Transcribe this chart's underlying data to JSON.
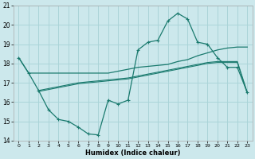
{
  "xlabel": "Humidex (Indice chaleur)",
  "background_color": "#cce8ec",
  "grid_color": "#aad4d8",
  "line_color": "#1a7a6e",
  "xlim": [
    -0.5,
    23.5
  ],
  "ylim": [
    14,
    21
  ],
  "yticks": [
    14,
    15,
    16,
    17,
    18,
    19,
    20,
    21
  ],
  "xticks": [
    0,
    1,
    2,
    3,
    4,
    5,
    6,
    7,
    8,
    9,
    10,
    11,
    12,
    13,
    14,
    15,
    16,
    17,
    18,
    19,
    20,
    21,
    22,
    23
  ],
  "curve_x": [
    0,
    1,
    2,
    3,
    4,
    5,
    6,
    7,
    8,
    9,
    10,
    11,
    12,
    13,
    14,
    15,
    16,
    17,
    18,
    19,
    20,
    21,
    22,
    23
  ],
  "curve_y": [
    18.3,
    17.5,
    16.6,
    15.6,
    15.1,
    15.0,
    14.7,
    14.35,
    14.3,
    16.1,
    15.9,
    16.1,
    18.7,
    19.1,
    19.2,
    20.2,
    20.6,
    20.3,
    19.1,
    19.0,
    18.3,
    17.8,
    17.8,
    16.5
  ],
  "flat_x": [
    0,
    1,
    2,
    3,
    4,
    5,
    6,
    7,
    8,
    9,
    10,
    11,
    12,
    13,
    14,
    15,
    16,
    17,
    18,
    19,
    20,
    21,
    22,
    23
  ],
  "flat_y": [
    18.3,
    17.5,
    17.5,
    17.5,
    17.5,
    17.5,
    17.5,
    17.5,
    17.5,
    17.5,
    17.6,
    17.7,
    17.8,
    17.85,
    17.9,
    17.95,
    18.1,
    18.2,
    18.4,
    18.55,
    18.7,
    18.8,
    18.85,
    18.85
  ],
  "reg1_x": [
    2,
    3,
    4,
    5,
    6,
    7,
    8,
    9,
    10,
    11,
    12,
    13,
    14,
    15,
    16,
    17,
    18,
    19,
    20,
    21,
    22,
    23
  ],
  "reg1_y": [
    16.6,
    16.7,
    16.8,
    16.9,
    17.0,
    17.05,
    17.1,
    17.15,
    17.2,
    17.25,
    17.35,
    17.45,
    17.55,
    17.65,
    17.75,
    17.85,
    17.95,
    18.05,
    18.1,
    18.1,
    18.1,
    16.5
  ],
  "reg2_x": [
    2,
    3,
    4,
    5,
    6,
    7,
    8,
    9,
    10,
    11,
    12,
    13,
    14,
    15,
    16,
    17,
    18,
    19,
    20,
    21,
    22,
    23
  ],
  "reg2_y": [
    16.55,
    16.65,
    16.75,
    16.85,
    16.95,
    17.0,
    17.05,
    17.1,
    17.15,
    17.2,
    17.3,
    17.4,
    17.5,
    17.6,
    17.7,
    17.8,
    17.9,
    18.0,
    18.05,
    18.05,
    18.05,
    16.45
  ]
}
